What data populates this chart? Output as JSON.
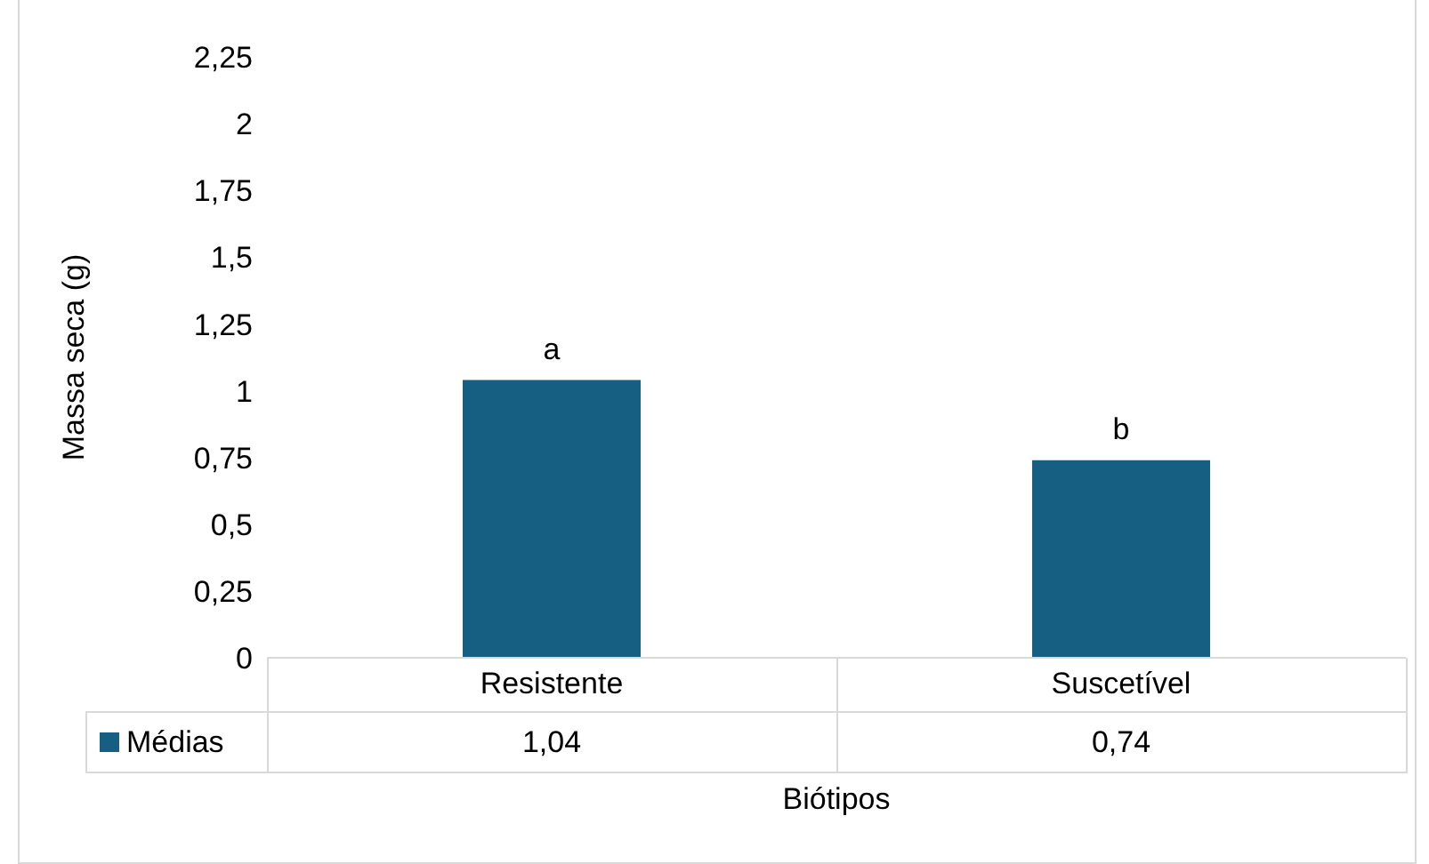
{
  "chart_data": {
    "type": "bar",
    "xlabel": "Biótipos",
    "ylabel": "Massa seca (g)",
    "categories": [
      "Resistente",
      "Suscetível"
    ],
    "series": [
      {
        "name": "Médias",
        "color": "#175f82",
        "values": [
          1.04,
          0.74
        ],
        "value_labels": [
          "1,04",
          "0,74"
        ]
      }
    ],
    "ylim": [
      0,
      2.25
    ],
    "yticks": [
      0,
      {
        "value": 0.25,
        "label": "0,25"
      },
      {
        "value": 0.5,
        "label": "0,5"
      },
      {
        "value": 0.75,
        "label": "0,75"
      },
      1,
      {
        "value": 1.25,
        "label": "1,25"
      },
      {
        "value": 1.5,
        "label": "1,5"
      },
      {
        "value": 1.75,
        "label": "1,75"
      },
      2,
      {
        "value": 2.25,
        "label": "2,25"
      }
    ],
    "annotations": [
      {
        "text": "a",
        "x": "Resistente",
        "y": 1.04
      },
      {
        "text": "b",
        "x": "Suscetível",
        "y": 0.74
      }
    ],
    "grid": false,
    "legend": "bottom left"
  }
}
